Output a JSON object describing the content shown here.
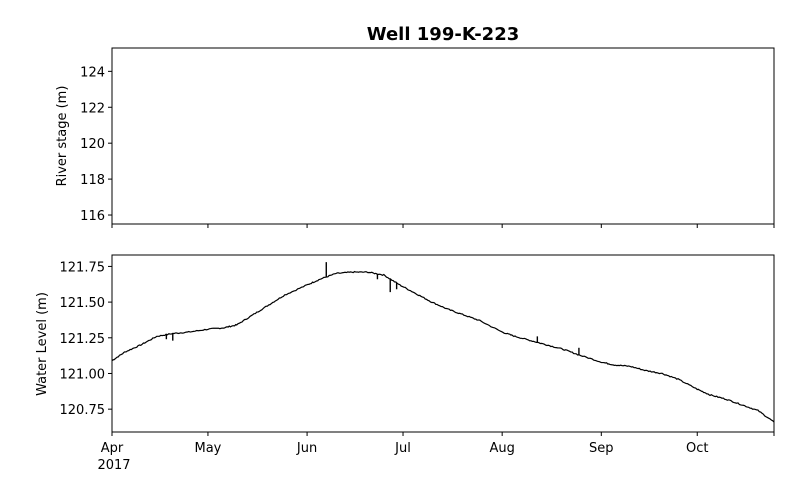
{
  "chart_data": [
    {
      "type": "line",
      "title": "Well 199-K-223",
      "ylabel": "River stage (m)",
      "xlabel": "",
      "xlim": [
        "2017-04-01",
        "2017-10-25"
      ],
      "ylim": [
        115.5,
        125.3
      ],
      "yticks": [
        116,
        118,
        120,
        122,
        124
      ],
      "grid": false,
      "series": []
    },
    {
      "type": "line",
      "title": "",
      "ylabel": "Water Level (m)",
      "xlabel": "",
      "xlim": [
        "2017-04-01",
        "2017-10-25"
      ],
      "ylim": [
        120.59,
        121.83
      ],
      "yticks": [
        120.75,
        121.0,
        121.25,
        121.5,
        121.75
      ],
      "ytick_labels": [
        "120.75",
        "121.00",
        "121.25",
        "121.50",
        "121.75"
      ],
      "xticks": [
        "2017-04-01",
        "2017-05-01",
        "2017-06-01",
        "2017-07-01",
        "2017-08-01",
        "2017-09-01",
        "2017-10-01"
      ],
      "xtick_labels": [
        "Apr",
        "May",
        "Jun",
        "Jul",
        "Aug",
        "Sep",
        "Oct"
      ],
      "xtick_sublabel": "2017",
      "grid": false,
      "series": [
        {
          "color": "#000000",
          "x": [
            "2017-04-01",
            "2017-04-05",
            "2017-04-10",
            "2017-04-15",
            "2017-04-20",
            "2017-04-25",
            "2017-05-01",
            "2017-05-06",
            "2017-05-10",
            "2017-05-15",
            "2017-05-20",
            "2017-05-25",
            "2017-06-01",
            "2017-06-05",
            "2017-06-10",
            "2017-06-15",
            "2017-06-20",
            "2017-06-25",
            "2017-06-30",
            "2017-07-05",
            "2017-07-10",
            "2017-07-15",
            "2017-07-20",
            "2017-07-25",
            "2017-08-01",
            "2017-08-05",
            "2017-08-10",
            "2017-08-15",
            "2017-08-20",
            "2017-08-25",
            "2017-09-01",
            "2017-09-05",
            "2017-09-10",
            "2017-09-15",
            "2017-09-20",
            "2017-09-25",
            "2017-10-01",
            "2017-10-05",
            "2017-10-10",
            "2017-10-15",
            "2017-10-20",
            "2017-10-25"
          ],
          "y": [
            121.09,
            121.15,
            121.2,
            121.26,
            121.28,
            121.29,
            121.31,
            121.32,
            121.34,
            121.41,
            121.48,
            121.55,
            121.62,
            121.66,
            121.7,
            121.71,
            121.71,
            121.69,
            121.62,
            121.56,
            121.5,
            121.45,
            121.41,
            121.37,
            121.29,
            121.26,
            121.23,
            121.2,
            121.17,
            121.13,
            121.08,
            121.06,
            121.05,
            121.02,
            121.0,
            120.96,
            120.89,
            120.85,
            120.82,
            120.78,
            120.74,
            120.66
          ]
        }
      ],
      "spikes": [
        {
          "x": "2017-04-18",
          "y": 121.24
        },
        {
          "x": "2017-04-20",
          "y": 121.23
        },
        {
          "x": "2017-06-07",
          "y": 121.78
        },
        {
          "x": "2017-06-23",
          "y": 121.66
        },
        {
          "x": "2017-06-27",
          "y": 121.57
        },
        {
          "x": "2017-06-29",
          "y": 121.59
        },
        {
          "x": "2017-08-12",
          "y": 121.26
        },
        {
          "x": "2017-08-25",
          "y": 121.18
        }
      ]
    }
  ]
}
